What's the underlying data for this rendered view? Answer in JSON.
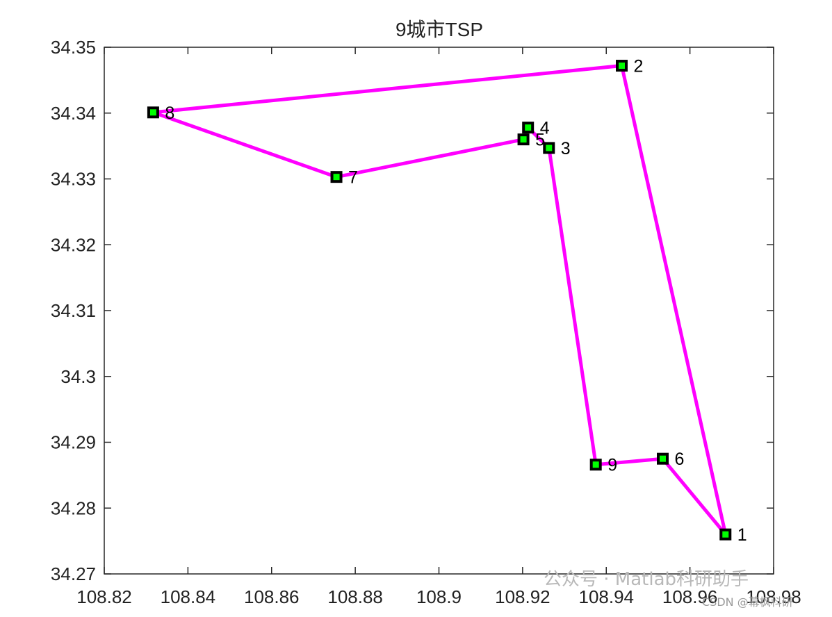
{
  "chart_data": {
    "type": "line",
    "title": "9城市TSP",
    "xlim": [
      108.82,
      108.98
    ],
    "ylim": [
      34.27,
      34.35
    ],
    "xticks": [
      108.82,
      108.84,
      108.86,
      108.88,
      108.9,
      108.92,
      108.94,
      108.96,
      108.98
    ],
    "xtick_labels": [
      "108.82",
      "108.84",
      "108.86",
      "108.88",
      "108.9",
      "108.92",
      "108.94",
      "108.96",
      "108.98"
    ],
    "yticks": [
      34.27,
      34.28,
      34.29,
      34.3,
      34.31,
      34.32,
      34.33,
      34.34,
      34.35
    ],
    "ytick_labels": [
      "34.27",
      "34.28",
      "34.29",
      "34.3",
      "34.31",
      "34.32",
      "34.33",
      "34.34",
      "34.35"
    ],
    "grid": false,
    "route_color": "#ff00ff",
    "marker_edge_color": "#000000",
    "marker_face_color": "#00ff00",
    "cities": [
      {
        "label": "1",
        "x": 108.9685,
        "y": 34.276
      },
      {
        "label": "2",
        "x": 108.9437,
        "y": 34.3472
      },
      {
        "label": "3",
        "x": 108.9263,
        "y": 34.3347
      },
      {
        "label": "4",
        "x": 108.9213,
        "y": 34.3378
      },
      {
        "label": "5",
        "x": 108.9202,
        "y": 34.336
      },
      {
        "label": "6",
        "x": 108.9535,
        "y": 34.2875
      },
      {
        "label": "7",
        "x": 108.8755,
        "y": 34.3303
      },
      {
        "label": "8",
        "x": 108.8317,
        "y": 34.3401
      },
      {
        "label": "9",
        "x": 108.9375,
        "y": 34.2866
      }
    ],
    "route": [
      "1",
      "2",
      "8",
      "7",
      "5",
      "4",
      "3",
      "9",
      "6",
      "1"
    ]
  },
  "watermark": {
    "main": "公众号 · Matlab科研助手",
    "small": "CSDN @幕枫科研"
  }
}
